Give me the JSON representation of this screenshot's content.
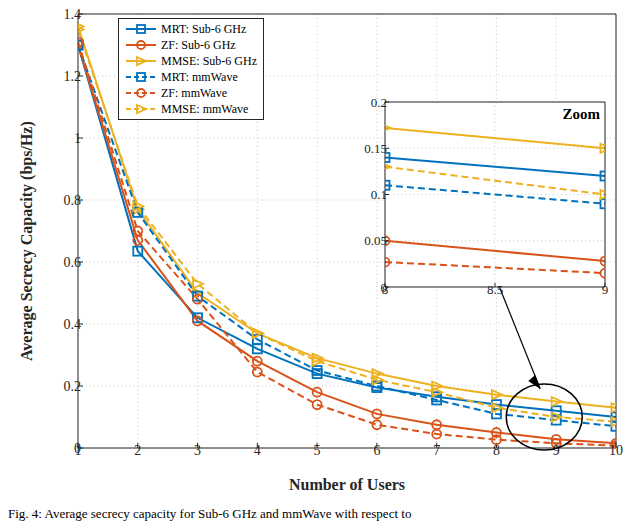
{
  "chart_data": [
    {
      "type": "line",
      "x_label": "Number of Users",
      "y_label": "Average Secrecy Capacity (bps/Hz)",
      "x": [
        1,
        2,
        3,
        4,
        5,
        6,
        7,
        8,
        9,
        10
      ],
      "xlim": [
        1,
        10
      ],
      "xticks": [
        1,
        2,
        3,
        4,
        5,
        6,
        7,
        8,
        9,
        10
      ],
      "ylim": [
        0,
        1.4
      ],
      "yticks": [
        0,
        0.2,
        0.4,
        0.6,
        0.8,
        1,
        1.2,
        1.4
      ],
      "grid": true,
      "legend": "upper left",
      "caption": "Fig. 4: Average secrecy capacity for Sub-6 GHz and mmWave with respect to",
      "series": [
        {
          "name": "MRT: Sub-6 GHz",
          "color": "#0072BD",
          "marker": "square",
          "line_style": "solid",
          "values": [
            1.3,
            0.635,
            0.42,
            0.32,
            0.24,
            0.195,
            0.165,
            0.14,
            0.12,
            0.1
          ]
        },
        {
          "name": "ZF: Sub-6 GHz",
          "color": "#D95319",
          "marker": "circle",
          "line_style": "solid",
          "values": [
            1.3,
            0.67,
            0.41,
            0.28,
            0.18,
            0.11,
            0.075,
            0.05,
            0.028,
            0.015
          ]
        },
        {
          "name": "MMSE: Sub-6 GHz",
          "color": "#EDB120",
          "marker": "triangle-right",
          "line_style": "solid",
          "values": [
            1.36,
            0.77,
            0.5,
            0.37,
            0.29,
            0.24,
            0.2,
            0.172,
            0.15,
            0.13
          ]
        },
        {
          "name": "MRT: mmWave",
          "color": "#0072BD",
          "marker": "square",
          "line_style": "dashed",
          "values": [
            1.3,
            0.76,
            0.49,
            0.35,
            0.25,
            0.2,
            0.155,
            0.11,
            0.09,
            0.07
          ]
        },
        {
          "name": "ZF: mmWave",
          "color": "#D95319",
          "marker": "circle",
          "line_style": "dashed",
          "values": [
            1.31,
            0.7,
            0.48,
            0.245,
            0.14,
            0.075,
            0.045,
            0.027,
            0.015,
            0.008
          ]
        },
        {
          "name": "MMSE: mmWave",
          "color": "#EDB120",
          "marker": "triangle-right",
          "line_style": "dashed",
          "values": [
            1.35,
            0.78,
            0.53,
            0.37,
            0.28,
            0.22,
            0.18,
            0.13,
            0.1,
            0.085
          ]
        }
      ]
    },
    {
      "type": "line",
      "title": "Zoom",
      "x": [
        8,
        9
      ],
      "xlim": [
        8,
        9
      ],
      "xticks": [
        8,
        8.5,
        9
      ],
      "ylim": [
        0,
        0.2
      ],
      "yticks": [
        0,
        0.05,
        0.1,
        0.15,
        0.2
      ],
      "grid": true,
      "series": [
        {
          "color": "#0072BD",
          "marker": "square",
          "line_style": "solid",
          "values": [
            0.14,
            0.12
          ]
        },
        {
          "color": "#D95319",
          "marker": "circle",
          "line_style": "solid",
          "values": [
            0.05,
            0.028
          ]
        },
        {
          "color": "#EDB120",
          "marker": "triangle-right",
          "line_style": "solid",
          "values": [
            0.172,
            0.15
          ]
        },
        {
          "color": "#0072BD",
          "marker": "square",
          "line_style": "dashed",
          "values": [
            0.11,
            0.09
          ]
        },
        {
          "color": "#D95319",
          "marker": "circle",
          "line_style": "dashed",
          "values": [
            0.027,
            0.015
          ]
        },
        {
          "color": "#EDB120",
          "marker": "triangle-right",
          "line_style": "dashed",
          "values": [
            0.13,
            0.1
          ]
        }
      ]
    }
  ]
}
